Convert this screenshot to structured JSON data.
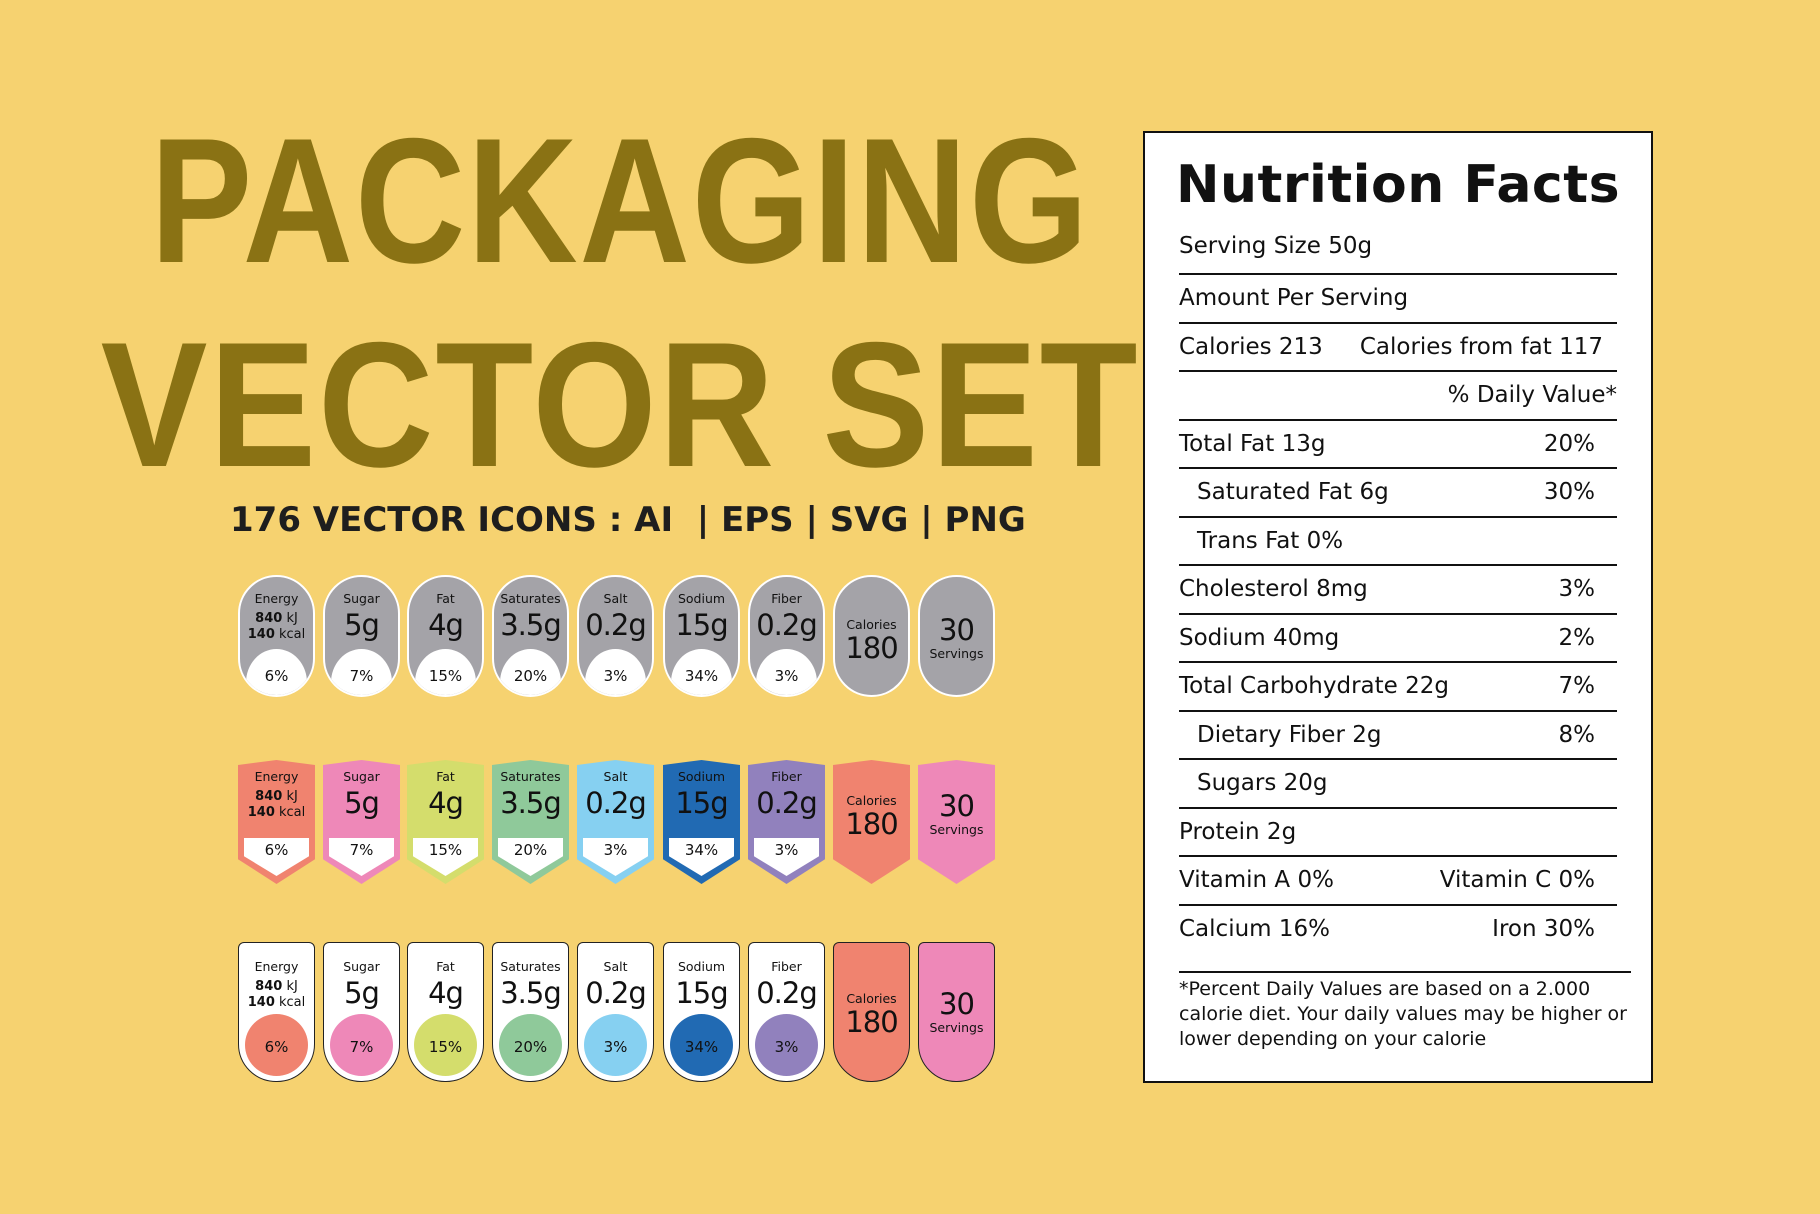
{
  "heading": {
    "line1": "PACKAGING",
    "line2": "VECTOR SET",
    "subtitle": "176 VECTOR ICONS : AI  | EPS | SVG | PNG"
  },
  "colors": {
    "background": "#f6d270",
    "title": "#8a7214",
    "gray_badge": "#a4a3a8"
  },
  "nutrients": [
    {
      "label": "Energy",
      "energy": [
        [
          "840",
          " kJ"
        ],
        [
          "140",
          " kcal"
        ]
      ],
      "pct": "6%",
      "color": "#f0836f"
    },
    {
      "label": "Sugar",
      "value": "5g",
      "pct": "7%",
      "color": "#ee88b8"
    },
    {
      "label": "Fat",
      "value": "4g",
      "pct": "15%",
      "color": "#d4dd6c"
    },
    {
      "label": "Saturates",
      "value": "3.5g",
      "pct": "20%",
      "color": "#8fc99a"
    },
    {
      "label": "Salt",
      "value": "0.2g",
      "pct": "3%",
      "color": "#86d0f1"
    },
    {
      "label": "Sodium",
      "value": "15g",
      "pct": "34%",
      "color": "#216ab3"
    },
    {
      "label": "Fiber",
      "value": "0.2g",
      "pct": "3%",
      "color": "#9181bd"
    }
  ],
  "calories": {
    "label": "Calories",
    "value": "180",
    "color": "#f0836f"
  },
  "servings": {
    "label": "Servings",
    "value": "30",
    "color": "#ee88b8"
  },
  "nutrition_facts": {
    "title": "Nutrition Facts",
    "serving": "Serving Size 50g",
    "rows": [
      {
        "left": "Amount Per Serving",
        "right": ""
      },
      {
        "left": "Calories 213",
        "right": "Calories from fat 117",
        "type": "cal"
      },
      {
        "left": "",
        "right": "% Daily Value*",
        "type": "dv"
      },
      {
        "left": "Total Fat 13g",
        "right": "20%"
      },
      {
        "left": "Saturated Fat 6g",
        "right": "30%",
        "indent": true
      },
      {
        "left": "Trans Fat 0%",
        "right": "",
        "indent": true
      },
      {
        "left": "Cholesterol 8mg",
        "right": "3%"
      },
      {
        "left": "Sodium 40mg",
        "right": "2%"
      },
      {
        "left": "Total Carbohydrate 22g",
        "right": "7%"
      },
      {
        "left": "Dietary Fiber 2g",
        "right": "8%",
        "indent": true
      },
      {
        "left": "Sugars 20g",
        "right": "",
        "indent": true
      },
      {
        "left": "Protein 2g",
        "right": ""
      },
      {
        "left": "Vitamin A 0%",
        "right": "Vitamin C 0%"
      },
      {
        "left": "Calcium 16%",
        "right": "Iron 30%"
      }
    ],
    "footnote": "*Percent Daily Values are based on a 2.000 calorie diet. Your daily values may be higher or lower depending on your calorie"
  }
}
